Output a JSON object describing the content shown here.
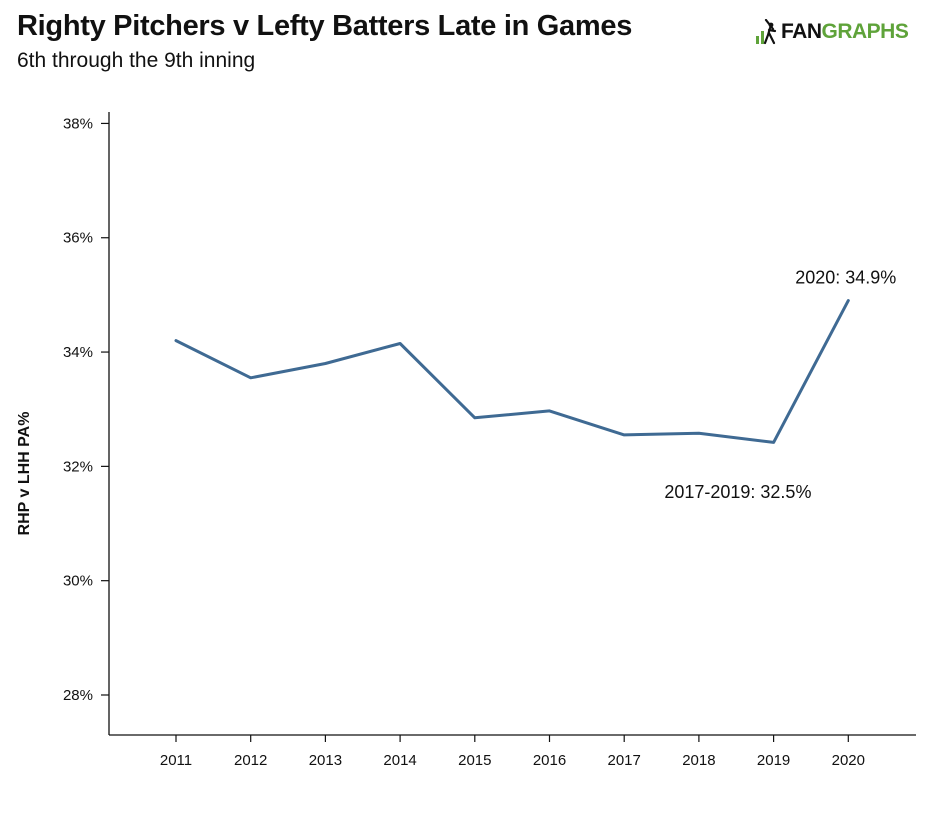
{
  "header": {
    "title": "Righty Pitchers v Lefty Batters Late in Games",
    "subtitle": "6th through the 9th inning"
  },
  "logo": {
    "text_primary": "FAN",
    "text_accent": "GRAPHS",
    "icon": "fangraphs-logo-icon",
    "accent_color": "#5fa33a"
  },
  "chart_data": {
    "type": "line",
    "title": "Righty Pitchers v Lefty Batters Late in Games",
    "subtitle": "6th through the 9th inning",
    "xlabel": "",
    "ylabel": "RHP v LHH PA%",
    "x": [
      "2011",
      "2012",
      "2013",
      "2014",
      "2015",
      "2016",
      "2017",
      "2018",
      "2019",
      "2020"
    ],
    "series": [
      {
        "values": [
          34.2,
          33.55,
          33.8,
          34.15,
          32.85,
          32.97,
          32.55,
          32.58,
          32.42,
          34.9
        ],
        "color": "#3f6a93"
      }
    ],
    "ylim": [
      27.3,
      38.2
    ],
    "yticks": [
      28,
      30,
      32,
      34,
      36,
      38
    ],
    "ytick_labels": [
      "28%",
      "30%",
      "32%",
      "34%",
      "36%",
      "38%"
    ],
    "grid": false,
    "legend": "none",
    "annotations": [
      {
        "text": "2020: 34.9%",
        "x": "2020",
        "y": 34.9
      },
      {
        "text": "2017-2019: 32.5%",
        "x": "2018",
        "y": 32.5
      }
    ]
  }
}
